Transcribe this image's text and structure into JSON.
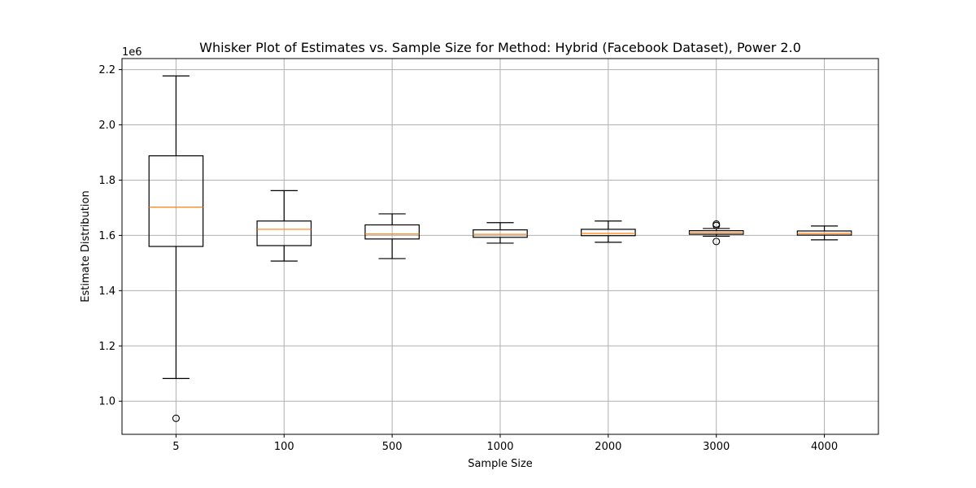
{
  "chart_data": {
    "type": "box",
    "title": "Whisker Plot of Estimates vs. Sample Size for Method: Hybrid (Facebook Dataset), Power 2.0",
    "xlabel": "Sample Size",
    "ylabel": "Estimate Distribution",
    "y_offset_label": "1e6",
    "ylim": [
      0.88,
      2.24
    ],
    "y_ticks": [
      1.0,
      1.2,
      1.4,
      1.6,
      1.8,
      2.0,
      2.2
    ],
    "y_tick_labels": [
      "1.0",
      "1.2",
      "1.4",
      "1.6",
      "1.8",
      "2.0",
      "2.2"
    ],
    "grid": true,
    "categories": [
      "5",
      "100",
      "500",
      "1000",
      "2000",
      "3000",
      "4000"
    ],
    "boxes": [
      {
        "category": "5",
        "whisker_low": 1.082,
        "q1": 1.56,
        "median": 1.702,
        "q3": 1.888,
        "whisker_high": 2.177,
        "outliers": [
          0.938
        ]
      },
      {
        "category": "100",
        "whisker_low": 1.507,
        "q1": 1.563,
        "median": 1.622,
        "q3": 1.652,
        "whisker_high": 1.762,
        "outliers": []
      },
      {
        "category": "500",
        "whisker_low": 1.516,
        "q1": 1.587,
        "median": 1.605,
        "q3": 1.638,
        "whisker_high": 1.678,
        "outliers": []
      },
      {
        "category": "1000",
        "whisker_low": 1.572,
        "q1": 1.593,
        "median": 1.604,
        "q3": 1.62,
        "whisker_high": 1.646,
        "outliers": []
      },
      {
        "category": "2000",
        "whisker_low": 1.575,
        "q1": 1.599,
        "median": 1.607,
        "q3": 1.622,
        "whisker_high": 1.652,
        "outliers": []
      },
      {
        "category": "3000",
        "whisker_low": 1.597,
        "q1": 1.604,
        "median": 1.61,
        "q3": 1.617,
        "whisker_high": 1.625,
        "outliers": [
          1.578,
          1.636,
          1.641
        ]
      },
      {
        "category": "4000",
        "whisker_low": 1.584,
        "q1": 1.601,
        "median": 1.607,
        "q3": 1.616,
        "whisker_high": 1.634,
        "outliers": []
      }
    ],
    "colors": {
      "box": "#000000",
      "median": "#ff7f0e",
      "grid": "#b0b0b0"
    }
  }
}
